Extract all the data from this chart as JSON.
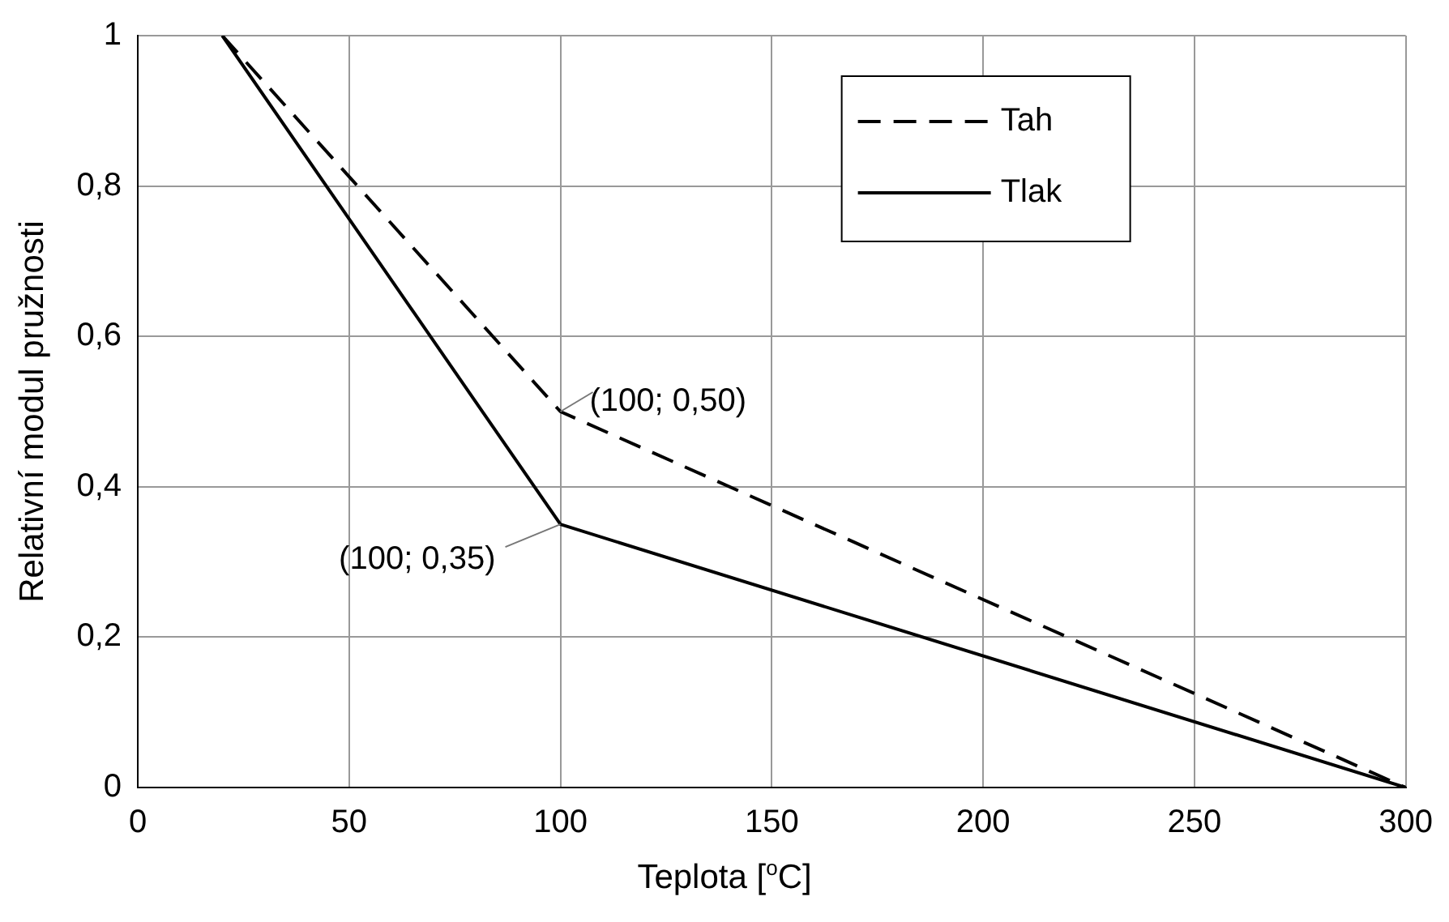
{
  "chart_data": {
    "type": "line",
    "xlabel": "Teplota [$^{o}$C]",
    "ylabel": "Relativní modul pružnosti",
    "series": [
      {
        "name": "Tah",
        "color": "#000000",
        "line_style": "dashed",
        "x": [
          20,
          100,
          300
        ],
        "values": [
          1,
          0.5,
          0
        ]
      },
      {
        "name": "Tlak",
        "color": "#000000",
        "line_style": "solid",
        "x": [
          20,
          100,
          300
        ],
        "values": [
          1,
          0.35,
          0
        ]
      }
    ],
    "xlim": [
      0,
      300
    ],
    "xticks": [
      0,
      50,
      100,
      150,
      200,
      250,
      300
    ],
    "ylim": [
      0,
      1
    ],
    "yticks": [
      0,
      {
        "value": 0.2,
        "label": "0,2"
      },
      {
        "value": 0.4,
        "label": "0,4"
      },
      {
        "value": 0.6,
        "label": "0,6"
      },
      {
        "value": 0.8,
        "label": "0,8"
      },
      1
    ],
    "grid": true,
    "legend": "top right",
    "marker": "none",
    "annotations": [
      {
        "text": "(100; 0,50)",
        "x": 100,
        "y": 0.5
      },
      {
        "text": "(100; 0,35)",
        "x": 100,
        "y": 0.35
      }
    ]
  }
}
